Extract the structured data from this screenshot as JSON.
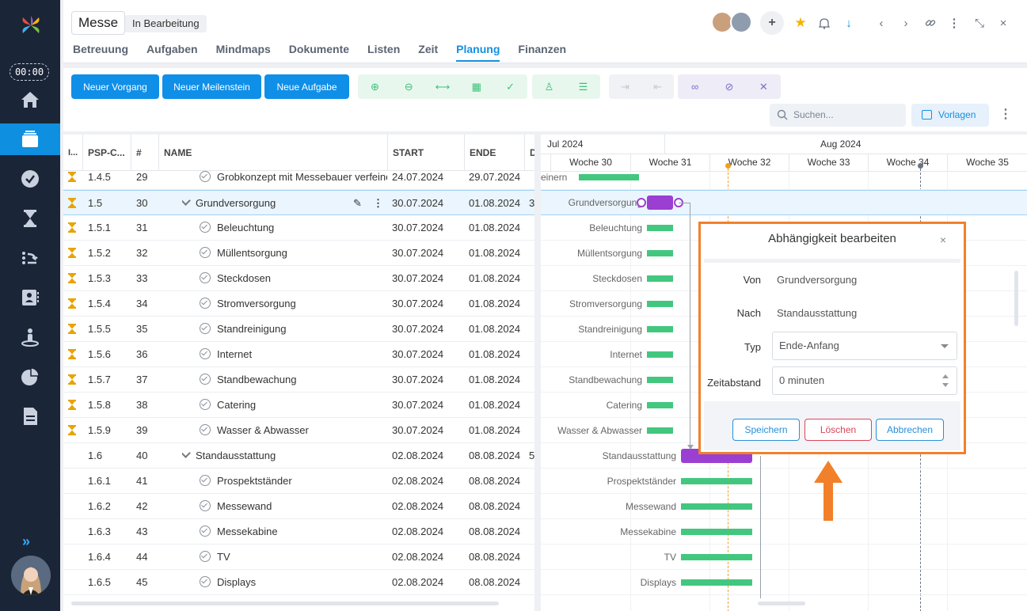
{
  "timer": "00:00",
  "header": {
    "title": "Messe",
    "status": "In Bearbeitung",
    "tabs": [
      "Betreuung",
      "Aufgaben",
      "Mindmaps",
      "Dokumente",
      "Listen",
      "Zeit",
      "Planung",
      "Finanzen"
    ],
    "active_tab": "Planung"
  },
  "toolbar": {
    "new_process": "Neuer Vorgang",
    "new_milestone": "Neuer Meilenstein",
    "new_task": "Neue Aufgabe",
    "search_placeholder": "Suchen...",
    "templates": "Vorlagen"
  },
  "grid": {
    "columns": [
      "I...",
      "PSP-C...",
      "#",
      "NAME",
      "START",
      "ENDE",
      "D"
    ],
    "rows": [
      {
        "hourglass": true,
        "psp": "1.4.5",
        "num": "29",
        "name": "Grobkonzept mit Messebauer verfeinern",
        "start": "24.07.2024",
        "end": "29.07.2024",
        "d": "",
        "type": "task",
        "selected": false
      },
      {
        "hourglass": true,
        "psp": "1.5",
        "num": "30",
        "name": "Grundversorgung",
        "start": "30.07.2024",
        "end": "01.08.2024",
        "d": "3",
        "type": "group",
        "selected": true
      },
      {
        "hourglass": true,
        "psp": "1.5.1",
        "num": "31",
        "name": "Beleuchtung",
        "start": "30.07.2024",
        "end": "01.08.2024",
        "d": "",
        "type": "task",
        "selected": false
      },
      {
        "hourglass": true,
        "psp": "1.5.2",
        "num": "32",
        "name": "Müllentsorgung",
        "start": "30.07.2024",
        "end": "01.08.2024",
        "d": "",
        "type": "task",
        "selected": false
      },
      {
        "hourglass": true,
        "psp": "1.5.3",
        "num": "33",
        "name": "Steckdosen",
        "start": "30.07.2024",
        "end": "01.08.2024",
        "d": "",
        "type": "task",
        "selected": false
      },
      {
        "hourglass": true,
        "psp": "1.5.4",
        "num": "34",
        "name": "Stromversorgung",
        "start": "30.07.2024",
        "end": "01.08.2024",
        "d": "",
        "type": "task",
        "selected": false
      },
      {
        "hourglass": true,
        "psp": "1.5.5",
        "num": "35",
        "name": "Standreinigung",
        "start": "30.07.2024",
        "end": "01.08.2024",
        "d": "",
        "type": "task",
        "selected": false
      },
      {
        "hourglass": true,
        "psp": "1.5.6",
        "num": "36",
        "name": "Internet",
        "start": "30.07.2024",
        "end": "01.08.2024",
        "d": "",
        "type": "task",
        "selected": false
      },
      {
        "hourglass": true,
        "psp": "1.5.7",
        "num": "37",
        "name": "Standbewachung",
        "start": "30.07.2024",
        "end": "01.08.2024",
        "d": "",
        "type": "task",
        "selected": false
      },
      {
        "hourglass": true,
        "psp": "1.5.8",
        "num": "38",
        "name": "Catering",
        "start": "30.07.2024",
        "end": "01.08.2024",
        "d": "",
        "type": "task",
        "selected": false
      },
      {
        "hourglass": true,
        "psp": "1.5.9",
        "num": "39",
        "name": "Wasser & Abwasser",
        "start": "30.07.2024",
        "end": "01.08.2024",
        "d": "",
        "type": "task",
        "selected": false
      },
      {
        "hourglass": false,
        "psp": "1.6",
        "num": "40",
        "name": "Standausstattung",
        "start": "02.08.2024",
        "end": "08.08.2024",
        "d": "5",
        "type": "group",
        "selected": false
      },
      {
        "hourglass": false,
        "psp": "1.6.1",
        "num": "41",
        "name": "Prospektständer",
        "start": "02.08.2024",
        "end": "08.08.2024",
        "d": "",
        "type": "task",
        "selected": false
      },
      {
        "hourglass": false,
        "psp": "1.6.2",
        "num": "42",
        "name": "Messewand",
        "start": "02.08.2024",
        "end": "08.08.2024",
        "d": "",
        "type": "task",
        "selected": false
      },
      {
        "hourglass": false,
        "psp": "1.6.3",
        "num": "43",
        "name": "Messekabine",
        "start": "02.08.2024",
        "end": "08.08.2024",
        "d": "",
        "type": "task",
        "selected": false
      },
      {
        "hourglass": false,
        "psp": "1.6.4",
        "num": "44",
        "name": "TV",
        "start": "02.08.2024",
        "end": "08.08.2024",
        "d": "",
        "type": "task",
        "selected": false
      },
      {
        "hourglass": false,
        "psp": "1.6.5",
        "num": "45",
        "name": "Displays",
        "start": "02.08.2024",
        "end": "08.08.2024",
        "d": "",
        "type": "task",
        "selected": false
      }
    ]
  },
  "gantt": {
    "months": [
      "Jul 2024",
      "Aug 2024"
    ],
    "weeks": [
      "Woche 30",
      "Woche 31",
      "Woche 32",
      "Woche 33",
      "Woche 34",
      "Woche 35"
    ],
    "labels": [
      "einern",
      "Grundversorgung",
      "Beleuchtung",
      "Müllentsorgung",
      "Steckdosen",
      "Stromversorgung",
      "Standreinigung",
      "Internet",
      "Standbewachung",
      "Catering",
      "Wasser & Abwasser",
      "Standausstattung",
      "Prospektständer",
      "Messewand",
      "Messekabine",
      "TV",
      "Displays"
    ]
  },
  "dialog": {
    "title": "Abhängigkeit bearbeiten",
    "from_label": "Von",
    "from_value": "Grundversorgung",
    "to_label": "Nach",
    "to_value": "Standausstattung",
    "type_label": "Typ",
    "type_value": "Ende-Anfang",
    "lag_label": "Zeitabstand",
    "lag_value": "0 minuten",
    "save": "Speichern",
    "delete": "Löschen",
    "cancel": "Abbrechen"
  },
  "colors": {
    "sidebar": "#1b2538",
    "accent": "#0f8fe8",
    "task_bar": "#43c77f",
    "group_bar": "#9a3fd1",
    "highlight": "#f2802a",
    "today_line": "#f0a020"
  }
}
